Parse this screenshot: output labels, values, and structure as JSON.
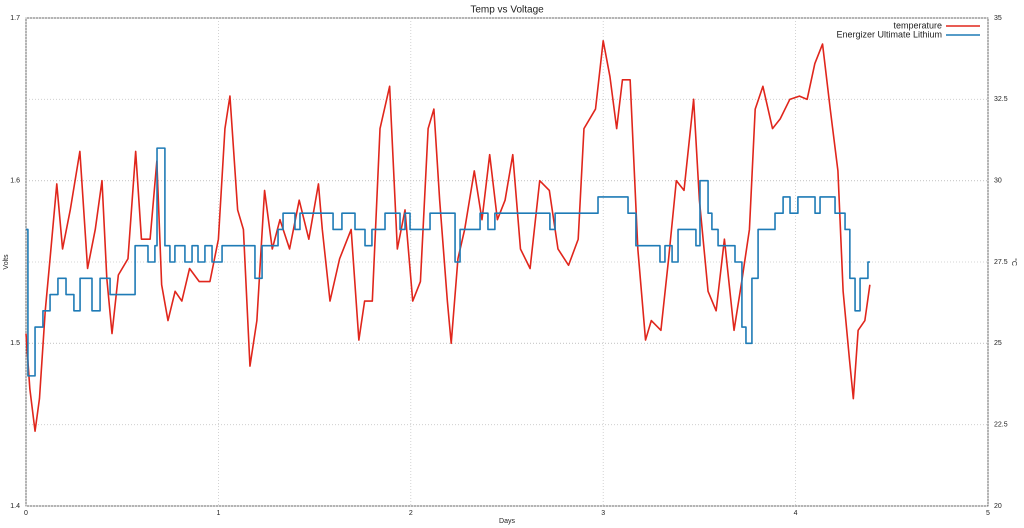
{
  "chart_data": {
    "type": "line",
    "title": "Temp vs Voltage",
    "xlabel": "Days",
    "ylabel": "Volts",
    "y2label": "°C",
    "xlim": [
      0,
      5
    ],
    "xticks": [
      0,
      1,
      2,
      3,
      4,
      5
    ],
    "ylim": [
      1.4,
      1.7
    ],
    "yticks": [
      1.4,
      1.5,
      1.6,
      1.7
    ],
    "y2lim": [
      20,
      35
    ],
    "y2ticks": [
      20,
      22.5,
      25,
      27.5,
      30,
      32.5,
      35
    ],
    "grid": true,
    "legend": "upper right",
    "series": [
      {
        "name": "temperature",
        "color": "#e0261c",
        "axis": "y2",
        "x": [
          0,
          0.02,
          0.047,
          0.07,
          0.1,
          0.125,
          0.16,
          0.19,
          0.23,
          0.28,
          0.32,
          0.36,
          0.395,
          0.42,
          0.447,
          0.48,
          0.53,
          0.57,
          0.6,
          0.645,
          0.68,
          0.705,
          0.738,
          0.775,
          0.81,
          0.85,
          0.9,
          0.956,
          1.0,
          1.034,
          1.06,
          1.1,
          1.13,
          1.164,
          1.2,
          1.24,
          1.28,
          1.32,
          1.37,
          1.42,
          1.47,
          1.52,
          1.54,
          1.58,
          1.63,
          1.69,
          1.73,
          1.76,
          1.8,
          1.84,
          1.89,
          1.93,
          1.97,
          2.01,
          2.05,
          2.09,
          2.12,
          2.15,
          2.19,
          2.21,
          2.245,
          2.28,
          2.33,
          2.37,
          2.41,
          2.45,
          2.49,
          2.53,
          2.57,
          2.62,
          2.67,
          2.72,
          2.765,
          2.82,
          2.87,
          2.9,
          2.96,
          3.0,
          3.035,
          3.07,
          3.1,
          3.14,
          3.18,
          3.22,
          3.25,
          3.3,
          3.34,
          3.38,
          3.42,
          3.47,
          3.5,
          3.545,
          3.587,
          3.63,
          3.68,
          3.72,
          3.76,
          3.79,
          3.83,
          3.88,
          3.92,
          3.97,
          4.02,
          4.06,
          4.1,
          4.14,
          4.18,
          4.22,
          4.247,
          4.28,
          4.3,
          4.325,
          4.36,
          4.386
        ],
        "values": [
          25.3,
          23.6,
          22.3,
          23.3,
          26.0,
          27.6,
          29.9,
          27.9,
          29.1,
          30.9,
          27.3,
          28.5,
          30.0,
          27.0,
          25.3,
          27.1,
          27.6,
          30.9,
          28.2,
          28.2,
          30.6,
          26.8,
          25.7,
          26.6,
          26.3,
          27.3,
          26.9,
          26.9,
          28.2,
          31.6,
          32.6,
          29.1,
          28.5,
          24.3,
          25.7,
          29.7,
          27.9,
          28.8,
          27.9,
          29.4,
          28.2,
          29.9,
          28.5,
          26.3,
          27.6,
          28.5,
          25.1,
          26.3,
          26.3,
          31.6,
          32.9,
          27.9,
          29.1,
          26.3,
          26.9,
          31.6,
          32.2,
          29.4,
          26.3,
          25.0,
          27.6,
          28.5,
          30.3,
          28.8,
          30.8,
          28.8,
          29.4,
          30.8,
          27.9,
          27.3,
          30.0,
          29.7,
          27.9,
          27.4,
          28.2,
          31.6,
          32.2,
          34.3,
          33.2,
          31.6,
          33.1,
          33.1,
          27.9,
          25.1,
          25.7,
          25.4,
          27.6,
          30.0,
          29.7,
          32.5,
          29.4,
          26.6,
          26.0,
          28.2,
          25.4,
          26.9,
          28.5,
          32.2,
          32.9,
          31.6,
          31.9,
          32.5,
          32.6,
          32.5,
          33.6,
          34.2,
          32.2,
          30.3,
          26.6,
          24.5,
          23.3,
          25.4,
          25.7,
          26.8
        ]
      },
      {
        "name": "Energizer Ultimate Lithium",
        "color": "#1f7bb6",
        "axis": "y",
        "drawstyle": "steps-post",
        "x": [
          0,
          0.01,
          0.047,
          0.088,
          0.125,
          0.166,
          0.208,
          0.249,
          0.281,
          0.343,
          0.385,
          0.437,
          0.567,
          0.634,
          0.67,
          0.681,
          0.722,
          0.748,
          0.774,
          0.826,
          0.863,
          0.894,
          0.93,
          0.967,
          1.019,
          1.19,
          1.227,
          1.31,
          1.336,
          1.398,
          1.424,
          1.596,
          1.642,
          1.71,
          1.762,
          1.798,
          1.866,
          1.944,
          1.97,
          1.996,
          2.1,
          2.23,
          2.256,
          2.36,
          2.401,
          2.437,
          2.723,
          2.75,
          2.973,
          3.129,
          3.17,
          3.295,
          3.321,
          3.358,
          3.389,
          3.482,
          3.503,
          3.545,
          3.565,
          3.597,
          3.685,
          3.721,
          3.742,
          3.773,
          3.805,
          3.893,
          3.935,
          3.971,
          4.012,
          4.101,
          4.127,
          4.205,
          4.257,
          4.282,
          4.309,
          4.335,
          4.376,
          4.387
        ],
        "values": [
          1.57,
          1.48,
          1.51,
          1.52,
          1.53,
          1.54,
          1.53,
          1.52,
          1.54,
          1.52,
          1.54,
          1.53,
          1.56,
          1.55,
          1.56,
          1.62,
          1.56,
          1.55,
          1.56,
          1.55,
          1.56,
          1.55,
          1.56,
          1.55,
          1.56,
          1.54,
          1.56,
          1.57,
          1.58,
          1.57,
          1.58,
          1.57,
          1.58,
          1.57,
          1.56,
          1.57,
          1.58,
          1.57,
          1.58,
          1.57,
          1.58,
          1.55,
          1.57,
          1.58,
          1.57,
          1.58,
          1.57,
          1.58,
          1.59,
          1.58,
          1.56,
          1.55,
          1.56,
          1.55,
          1.57,
          1.56,
          1.6,
          1.58,
          1.57,
          1.56,
          1.55,
          1.51,
          1.5,
          1.54,
          1.57,
          1.58,
          1.59,
          1.58,
          1.59,
          1.58,
          1.59,
          1.58,
          1.57,
          1.54,
          1.52,
          1.54,
          1.55,
          1.55
        ]
      }
    ]
  }
}
